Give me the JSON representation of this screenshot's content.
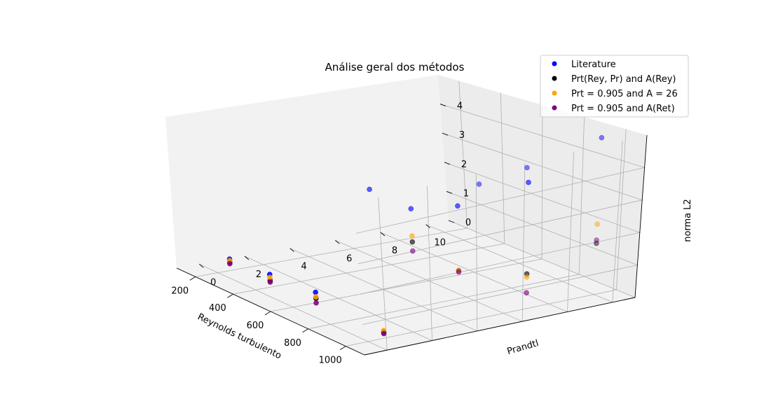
{
  "chart_data": {
    "type": "scatter3d",
    "title": "Análise geral dos métodos",
    "xlabel": "Reynolds turbulento",
    "ylabel": "Prandtl",
    "zlabel": "norma L2",
    "xticks": [
      "200",
      "400",
      "600",
      "800",
      "1000"
    ],
    "yticks": [
      "0",
      "2",
      "4",
      "6",
      "8",
      "10"
    ],
    "zticks": [
      "0",
      "1",
      "2",
      "3",
      "4"
    ],
    "xlim": [
      100,
      1100
    ],
    "ylim": [
      -1,
      11
    ],
    "zlim": [
      0,
      5
    ],
    "grid": true,
    "legend_position": "top-right",
    "series": [
      {
        "name": "Literature",
        "color": "#0000ff",
        "points": [
          {
            "x": 180,
            "y": 0.7,
            "z": 0.3
          },
          {
            "x": 395,
            "y": 0.7,
            "z": 0.4
          },
          {
            "x": 640,
            "y": 0.7,
            "z": 0.5
          },
          {
            "x": 180,
            "y": 7.0,
            "z": 1.8
          },
          {
            "x": 395,
            "y": 7.0,
            "z": 1.7
          },
          {
            "x": 395,
            "y": 10.0,
            "z": 2.1
          },
          {
            "x": 640,
            "y": 7.0,
            "z": 2.4
          },
          {
            "x": 640,
            "y": 10.0,
            "z": 3.2
          },
          {
            "x": 1000,
            "y": 7.0,
            "z": 4.0
          },
          {
            "x": 1000,
            "y": 10.0,
            "z": 4.9
          }
        ]
      },
      {
        "name": "Prt(Rey, Pr) and A(Rey)",
        "color": "#000000",
        "points": [
          {
            "x": 180,
            "y": 0.7,
            "z": 0.2
          },
          {
            "x": 395,
            "y": 0.7,
            "z": 0.2
          },
          {
            "x": 640,
            "y": 0.7,
            "z": 0.3
          },
          {
            "x": 1000,
            "y": 0.7,
            "z": 0.2
          },
          {
            "x": 395,
            "y": 7.0,
            "z": 0.6
          },
          {
            "x": 640,
            "y": 7.0,
            "z": 0.3
          },
          {
            "x": 1000,
            "y": 7.0,
            "z": 1.1
          },
          {
            "x": 1000,
            "y": 10.0,
            "z": 1.6
          }
        ]
      },
      {
        "name": "Prt = 0.905 and A = 26",
        "color": "#ffa500",
        "points": [
          {
            "x": 180,
            "y": 0.7,
            "z": 0.25
          },
          {
            "x": 395,
            "y": 0.7,
            "z": 0.3
          },
          {
            "x": 640,
            "y": 0.7,
            "z": 0.35
          },
          {
            "x": 1000,
            "y": 0.7,
            "z": 0.25
          },
          {
            "x": 395,
            "y": 7.0,
            "z": 0.8
          },
          {
            "x": 640,
            "y": 7.0,
            "z": 0.3
          },
          {
            "x": 1000,
            "y": 7.0,
            "z": 1.0
          },
          {
            "x": 1000,
            "y": 10.0,
            "z": 2.2
          }
        ]
      },
      {
        "name": "Prt = 0.905 and A(Ret)",
        "color": "#800080",
        "points": [
          {
            "x": 180,
            "y": 0.7,
            "z": 0.15
          },
          {
            "x": 395,
            "y": 0.7,
            "z": 0.15
          },
          {
            "x": 640,
            "y": 0.7,
            "z": 0.15
          },
          {
            "x": 1000,
            "y": 0.7,
            "z": 0.15
          },
          {
            "x": 395,
            "y": 7.0,
            "z": 0.3
          },
          {
            "x": 640,
            "y": 7.0,
            "z": 0.25
          },
          {
            "x": 1000,
            "y": 7.0,
            "z": 0.5
          },
          {
            "x": 1000,
            "y": 10.0,
            "z": 1.7
          }
        ]
      }
    ]
  }
}
